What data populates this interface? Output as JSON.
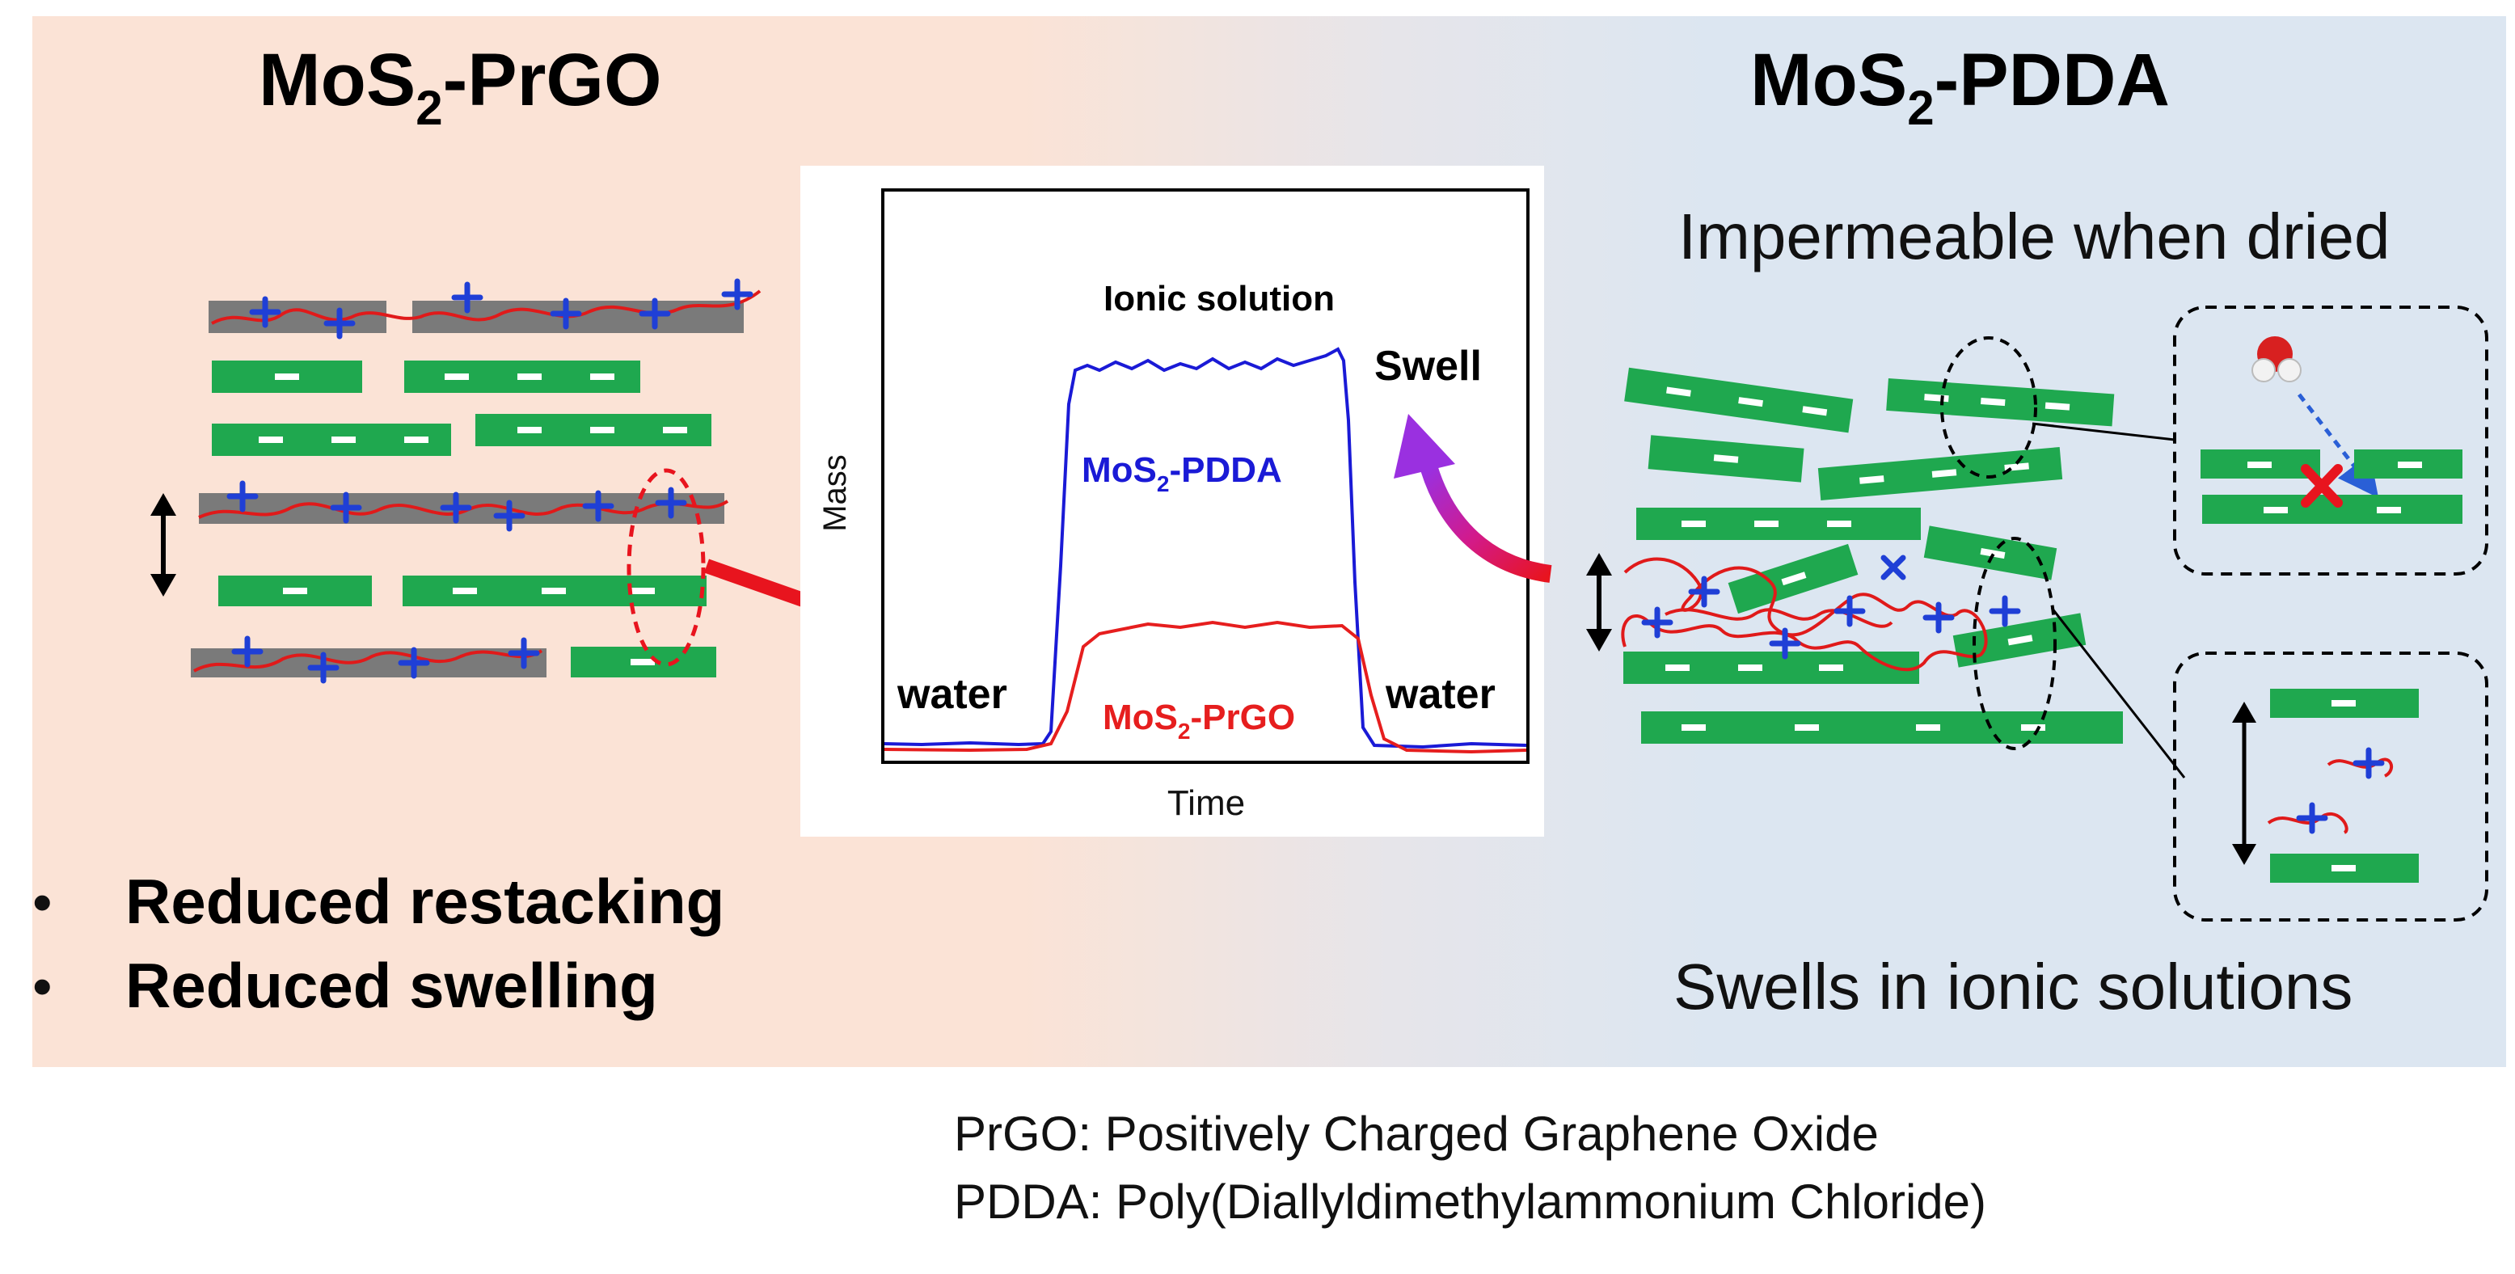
{
  "left_panel": {
    "title_main": "MoS",
    "title_sub": "2",
    "title_rest": "-PrGO",
    "bullets": [
      "Reduced restacking",
      "Reduced swelling"
    ],
    "bullet_symbol": "•"
  },
  "right_panel": {
    "title_main": "MoS",
    "title_sub": "2",
    "title_rest": "-PDDA",
    "caption_top": "Impermeable when dried",
    "caption_bottom": "Swells in ionic solutions"
  },
  "graph": {
    "ylabel": "Mass",
    "xlabel": "Time",
    "label_ionic": "Ionic solution",
    "label_swell": "Swell",
    "label_water_left": "water",
    "label_water_right": "water",
    "series_pdda": {
      "name_main": "MoS",
      "name_sub": "2",
      "name_rest": "-PDDA",
      "color": "#1a1ad6"
    },
    "series_prgo": {
      "name_main": "MoS",
      "name_sub": "2",
      "name_rest": "-PrGO",
      "color": "#e61e1e"
    }
  },
  "footnotes": [
    "PrGO: Positively Charged Graphene Oxide",
    "PDDA: Poly(Diallyldimethylammonium Chloride)"
  ],
  "colors": {
    "left_bg": "#fbe3d6",
    "right_bg": "#dce6f1",
    "sheet_green": "#1fa84f",
    "sheet_gray": "#7a7a7a",
    "arrow_red": "#e8141e",
    "arrow_magenta": "#c31fb6"
  }
}
